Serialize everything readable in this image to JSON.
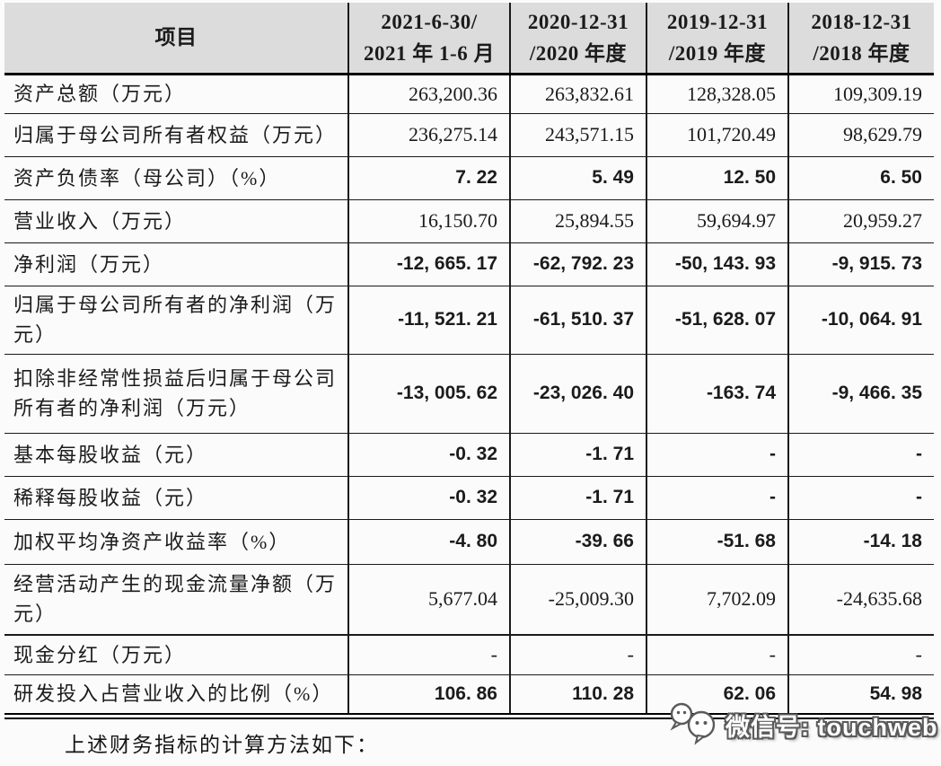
{
  "table": {
    "header": {
      "item_label": "项目",
      "periods": [
        {
          "line1": "2021-6-30/",
          "line2": "2021 年 1-6 月"
        },
        {
          "line1": "2020-12-31",
          "line2": "/2020 年度"
        },
        {
          "line1": "2019-12-31",
          "line2": "/2019 年度"
        },
        {
          "line1": "2018-12-31",
          "line2": "/2018 年度"
        }
      ]
    },
    "rows": [
      {
        "label": "资产总额（万元）",
        "bold": false,
        "values": [
          "263,200.36",
          "263,832.61",
          "128,328.05",
          "109,309.19"
        ]
      },
      {
        "label": "归属于母公司所有者权益（万元）",
        "bold": false,
        "values": [
          "236,275.14",
          "243,571.15",
          "101,720.49",
          "98,629.79"
        ]
      },
      {
        "label": "资产负债率（母公司）（%）",
        "bold": true,
        "values": [
          "7. 22",
          "5. 49",
          "12. 50",
          "6. 50"
        ]
      },
      {
        "label": "营业收入（万元）",
        "bold": false,
        "values": [
          "16,150.70",
          "25,894.55",
          "59,694.97",
          "20,959.27"
        ]
      },
      {
        "label": "净利润（万元）",
        "bold": true,
        "values": [
          "-12, 665. 17",
          "-62, 792. 23",
          "-50, 143. 93",
          "-9, 915. 73"
        ]
      },
      {
        "label": "归属于母公司所有者的净利润（万元）",
        "bold": true,
        "values": [
          "-11, 521. 21",
          "-61, 510. 37",
          "-51, 628. 07",
          "-10, 064. 91"
        ]
      },
      {
        "label": "扣除非经常性损益后归属于母公司所有者的净利润（万元）",
        "bold": true,
        "values": [
          "-13, 005. 62",
          "-23, 026. 40",
          "-163. 74",
          "-9, 466. 35"
        ]
      },
      {
        "label": "基本每股收益（元）",
        "bold": true,
        "values": [
          "-0. 32",
          "-1. 71",
          "-",
          "-"
        ]
      },
      {
        "label": "稀释每股收益（元）",
        "bold": true,
        "values": [
          "-0. 32",
          "-1. 71",
          "-",
          "-"
        ]
      },
      {
        "label": "加权平均净资产收益率（%）",
        "bold": true,
        "values": [
          "-4. 80",
          "-39. 66",
          "-51. 68",
          "-14. 18"
        ]
      },
      {
        "label": "经营活动产生的现金流量净额（万元）",
        "bold": false,
        "values": [
          "5,677.04",
          "-25,009.30",
          "7,702.09",
          "-24,635.68"
        ]
      },
      {
        "label": "现金分红（万元）",
        "bold": false,
        "values": [
          "-",
          "-",
          "-",
          "-"
        ]
      },
      {
        "label": "研发投入占营业收入的比例（%）",
        "bold": true,
        "values": [
          "106. 86",
          "110. 28",
          "62. 06",
          "54. 98"
        ]
      }
    ]
  },
  "footer": {
    "note": "上述财务指标的计算方法如下："
  },
  "watermark": {
    "icon": "wechat-icon",
    "text": "微信号: touchweb"
  },
  "colors": {
    "page_bg": "#fbfbfb",
    "header_bg": "#dcdcdc",
    "line": "#1a1a1a",
    "text": "#1b1b1b",
    "wm_fill": "#ffffff",
    "wm_outline": "#5a5a5a"
  }
}
